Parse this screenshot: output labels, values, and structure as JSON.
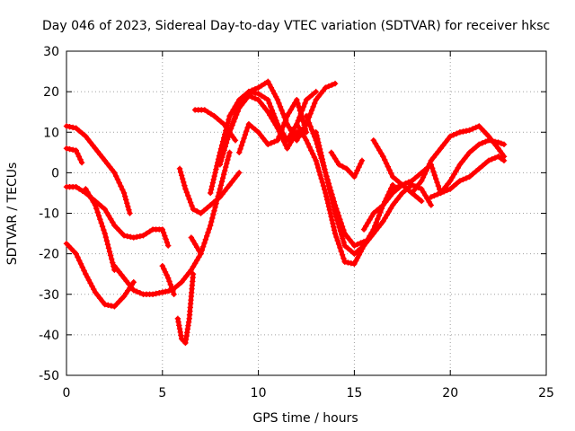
{
  "chart_data": {
    "type": "scatter",
    "title": "Day 046 of 2023, Sidereal Day-to-day VTEC variation (SDTVAR) for receiver hksc",
    "xlabel": "GPS time / hours",
    "ylabel": "SDTVAR / TECUs",
    "xlim": [
      0,
      25
    ],
    "ylim": [
      -50,
      30
    ],
    "xticks": [
      "0",
      "5",
      "10",
      "15",
      "20",
      "25"
    ],
    "yticks": [
      "-50",
      "-40",
      "-30",
      "-20",
      "-10",
      "0",
      "10",
      "20",
      "30"
    ],
    "grid": true,
    "marker": "+",
    "color": "#ff0000",
    "series": [
      {
        "x": [
          0.0,
          0.5,
          1.0,
          1.5,
          2.0,
          2.5,
          3.0,
          3.3
        ],
        "y": [
          11.5,
          11.0,
          9.0,
          6.0,
          3.0,
          0.0,
          -5.0,
          -10.0
        ]
      },
      {
        "x": [
          0.0,
          0.5,
          0.8
        ],
        "y": [
          6.0,
          5.5,
          2.5
        ]
      },
      {
        "x": [
          0.0,
          0.5,
          1.0,
          1.5,
          2.0,
          2.5,
          3.0,
          3.5,
          4.0,
          4.5,
          5.0,
          5.3
        ],
        "y": [
          -3.5,
          -3.5,
          -5.0,
          -7.0,
          -9.0,
          -13.0,
          -15.5,
          -16.0,
          -15.5,
          -14.0,
          -14.0,
          -18.0
        ]
      },
      {
        "x": [
          0.0,
          0.5,
          1.0,
          1.5,
          2.0,
          2.5,
          3.0,
          3.5
        ],
        "y": [
          -17.5,
          -20.0,
          -25.0,
          -29.5,
          -32.5,
          -33.0,
          -30.5,
          -27.0
        ]
      },
      {
        "x": [
          1.0,
          1.5,
          2.0,
          2.5
        ],
        "y": [
          -4.0,
          -8.0,
          -15.0,
          -24.0
        ]
      },
      {
        "x": [
          2.5,
          3.0,
          3.5,
          4.0,
          4.5,
          5.0,
          5.5,
          6.0,
          6.5,
          7.0
        ],
        "y": [
          -23.0,
          -26.0,
          -29.0,
          -30.0,
          -30.0,
          -29.5,
          -29.0,
          -27.0,
          -24.0,
          -20.0
        ]
      },
      {
        "x": [
          5.8,
          6.0,
          6.2,
          6.4,
          6.6
        ],
        "y": [
          -36.0,
          -41.0,
          -42.0,
          -36.0,
          -25.0
        ]
      },
      {
        "x": [
          5.0,
          5.3,
          5.6
        ],
        "y": [
          -23.0,
          -26.0,
          -30.0
        ]
      },
      {
        "x": [
          5.9,
          6.2,
          6.6,
          7.0,
          7.5,
          8.0,
          8.5,
          9.0
        ],
        "y": [
          1.0,
          -4.0,
          -9.0,
          -10.0,
          -8.0,
          -6.0,
          -3.0,
          0.0
        ]
      },
      {
        "x": [
          6.5,
          7.0,
          7.5,
          8.0,
          8.5
        ],
        "y": [
          -16.0,
          -20.0,
          -13.0,
          -4.0,
          5.0
        ]
      },
      {
        "x": [
          6.7,
          7.2,
          7.7,
          8.2,
          8.8
        ],
        "y": [
          15.5,
          15.5,
          14.0,
          12.0,
          8.0
        ]
      },
      {
        "x": [
          7.5,
          8.0,
          8.5,
          9.0,
          9.5,
          10.0,
          10.5,
          11.0,
          11.5,
          12.0,
          12.5,
          13.0
        ],
        "y": [
          -5.0,
          5.0,
          14.0,
          18.0,
          20.0,
          19.5,
          18.0,
          12.0,
          8.0,
          12.0,
          18.0,
          20.0
        ]
      },
      {
        "x": [
          8.0,
          8.5,
          9.0,
          9.5,
          10.0,
          10.5,
          11.0,
          11.5,
          12.0,
          12.5,
          13.0,
          13.5,
          14.0
        ],
        "y": [
          2.0,
          10.0,
          17.0,
          20.0,
          21.0,
          22.5,
          18.0,
          12.0,
          8.0,
          12.0,
          18.0,
          21.0,
          22.0
        ]
      },
      {
        "x": [
          8.5,
          9.0,
          9.5,
          10.0,
          10.5,
          11.0,
          11.5,
          12.0
        ],
        "y": [
          10.0,
          16.0,
          19.0,
          18.0,
          15.0,
          11.0,
          6.0,
          10.0
        ]
      },
      {
        "x": [
          9.0,
          9.5,
          10.0,
          10.5,
          11.0,
          11.5,
          12.0,
          12.5
        ],
        "y": [
          5.0,
          12.0,
          10.0,
          7.0,
          8.0,
          14.0,
          18.0,
          10.0
        ]
      },
      {
        "x": [
          12.0,
          12.5,
          13.0,
          13.5,
          14.0,
          14.5,
          15.0,
          15.5,
          16.0,
          16.5,
          17.0
        ],
        "y": [
          12.0,
          8.0,
          3.0,
          -5.0,
          -15.0,
          -22.0,
          -22.5,
          -18.0,
          -14.0,
          -8.0,
          -3.0
        ]
      },
      {
        "x": [
          12.5,
          13.0,
          13.5,
          14.0,
          14.5,
          15.0,
          15.5,
          16.0,
          16.5,
          17.0,
          17.5,
          18.0,
          18.5,
          19.0
        ],
        "y": [
          14.0,
          8.0,
          0.0,
          -10.0,
          -18.0,
          -20.0,
          -18.0,
          -15.0,
          -12.0,
          -8.0,
          -5.0,
          -3.0,
          -4.0,
          -8.0
        ]
      },
      {
        "x": [
          13.0,
          13.5,
          14.0,
          14.5,
          15.0,
          15.5
        ],
        "y": [
          10.0,
          0.0,
          -8.0,
          -15.0,
          -18.0,
          -17.0
        ]
      },
      {
        "x": [
          13.8,
          14.2,
          14.6,
          15.0,
          15.4
        ],
        "y": [
          5.0,
          2.0,
          1.0,
          -1.0,
          3.0
        ]
      },
      {
        "x": [
          15.5,
          16.0,
          16.5,
          17.0,
          17.5,
          18.0
        ],
        "y": [
          -14.0,
          -10.0,
          -8.0,
          -5.0,
          -3.0,
          -2.0
        ]
      },
      {
        "x": [
          16.0,
          16.5,
          17.0,
          17.5,
          18.0,
          18.5
        ],
        "y": [
          8.0,
          4.0,
          -1.0,
          -3.0,
          -5.0,
          -7.0
        ]
      },
      {
        "x": [
          17.0,
          17.5,
          18.0,
          18.5,
          19.0,
          19.5,
          20.0,
          20.5,
          21.0,
          21.5,
          22.0,
          22.5,
          22.8
        ],
        "y": [
          -4.0,
          -3.0,
          -2.0,
          0.0,
          2.0,
          -5.0,
          -2.0,
          2.0,
          5.0,
          7.0,
          8.0,
          7.5,
          7.0
        ]
      },
      {
        "x": [
          18.0,
          18.5,
          19.0,
          19.5,
          20.0,
          20.5,
          21.0,
          21.5,
          22.0,
          22.5,
          22.8
        ],
        "y": [
          -5.0,
          -2.0,
          3.0,
          6.0,
          9.0,
          10.0,
          10.5,
          11.5,
          9.0,
          6.0,
          4.0
        ]
      },
      {
        "x": [
          19.0,
          19.5,
          20.0,
          20.5,
          21.0,
          21.5,
          22.0,
          22.5,
          22.8
        ],
        "y": [
          -6.0,
          -5.0,
          -4.0,
          -2.0,
          -1.0,
          1.0,
          3.0,
          4.0,
          3.0
        ]
      }
    ]
  }
}
